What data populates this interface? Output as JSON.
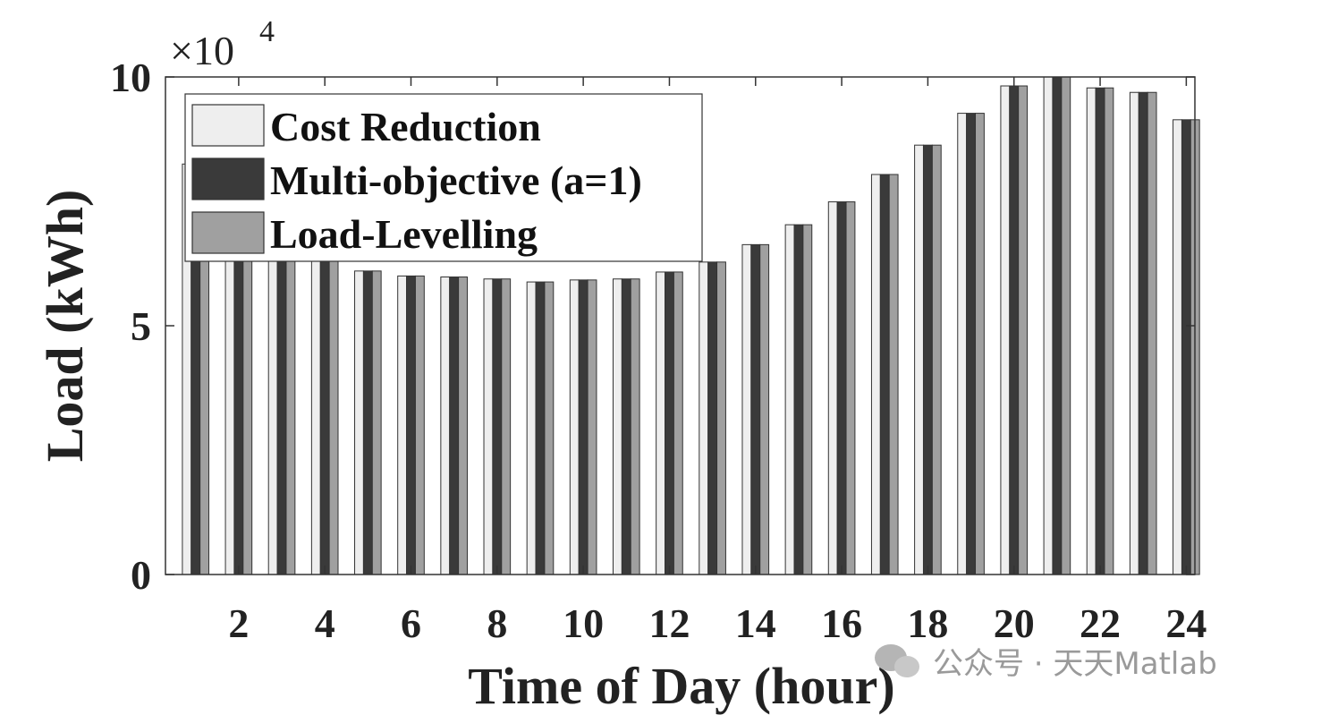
{
  "chart_data": {
    "type": "bar",
    "xlabel": "Time of Day (hour)",
    "ylabel": "Load (kWh)",
    "y_multiplier_label": "×10",
    "y_multiplier_exponent": "4",
    "ylim": [
      0,
      100000
    ],
    "xlim": [
      0.3,
      24.2
    ],
    "y_ticks": [
      0,
      50000,
      100000
    ],
    "y_tick_labels": [
      "0",
      "5",
      "10"
    ],
    "x_ticks": [
      2,
      4,
      6,
      8,
      10,
      12,
      14,
      16,
      18,
      20,
      22,
      24
    ],
    "x_tick_labels": [
      "2",
      "4",
      "6",
      "8",
      "10",
      "12",
      "14",
      "16",
      "18",
      "20",
      "22",
      "24"
    ],
    "categories": [
      1,
      2,
      3,
      4,
      5,
      6,
      7,
      8,
      9,
      10,
      11,
      12,
      13,
      14,
      15,
      16,
      17,
      18,
      19,
      20,
      21,
      22,
      23,
      24
    ],
    "grid": false,
    "legend_placement": "top-left",
    "series": [
      {
        "name": "Cost Reduction",
        "color": "#eeeeee",
        "values": [
          82500,
          80000,
          78000,
          70000,
          61000,
          60000,
          59800,
          59400,
          58800,
          59200,
          59400,
          60800,
          62800,
          66300,
          70300,
          74900,
          80400,
          86300,
          92700,
          98200,
          100000,
          97800,
          96900,
          91400
        ]
      },
      {
        "name": "Multi-objective (a=1)",
        "color": "#3a3a3a",
        "values": [
          82500,
          80000,
          78000,
          70000,
          61000,
          60000,
          59800,
          59400,
          58800,
          59200,
          59400,
          60800,
          62800,
          66300,
          70300,
          74900,
          80400,
          86300,
          92700,
          98200,
          100000,
          97800,
          96900,
          91400
        ]
      },
      {
        "name": "Load-Levelling",
        "color": "#a0a0a0",
        "values": [
          82500,
          80000,
          78000,
          70000,
          61000,
          60000,
          59800,
          59400,
          58800,
          59200,
          59400,
          60800,
          62800,
          66300,
          70300,
          74900,
          80400,
          86300,
          92700,
          98200,
          100000,
          97800,
          96900,
          91400
        ]
      }
    ]
  },
  "watermark": {
    "text": "公众号 · 天天Matlab",
    "icon": "wechat-icon"
  }
}
